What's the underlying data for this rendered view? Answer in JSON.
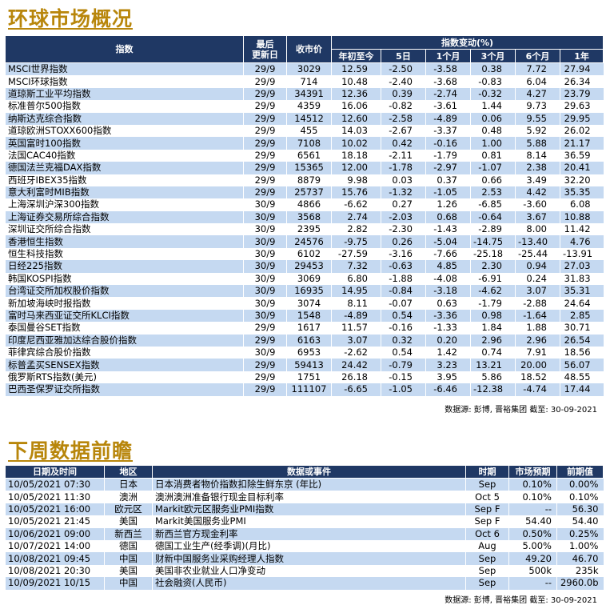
{
  "market": {
    "title": "环球市场概况",
    "headers": {
      "index": "指数",
      "last_update_l1": "最后",
      "last_update_l2": "更新日",
      "close": "收市价",
      "change_group": "指数变动(%)",
      "ytd": "年初至今",
      "d5": "5日",
      "m1": "1个月",
      "m3": "3个月",
      "m6": "6个月",
      "y1": "1年"
    },
    "rows": [
      {
        "name": "MSCI世界指数",
        "date": "29/9",
        "close": "3029",
        "ytd": "12.59",
        "d5": "-2.50",
        "m1": "-3.58",
        "m3": "0.38",
        "m6": "7.72",
        "y1": "27.94"
      },
      {
        "name": "MSCI环球指数",
        "date": "29/9",
        "close": "714",
        "ytd": "10.48",
        "d5": "-2.40",
        "m1": "-3.68",
        "m3": "-0.83",
        "m6": "6.04",
        "y1": "26.34"
      },
      {
        "name": "道琼斯工业平均指数",
        "date": "29/9",
        "close": "34391",
        "ytd": "12.36",
        "d5": "0.39",
        "m1": "-2.74",
        "m3": "-0.32",
        "m6": "4.27",
        "y1": "23.79"
      },
      {
        "name": "标准普尔500指数",
        "date": "29/9",
        "close": "4359",
        "ytd": "16.06",
        "d5": "-0.82",
        "m1": "-3.61",
        "m3": "1.44",
        "m6": "9.73",
        "y1": "29.63"
      },
      {
        "name": "纳斯达克综合指数",
        "date": "29/9",
        "close": "14512",
        "ytd": "12.60",
        "d5": "-2.58",
        "m1": "-4.89",
        "m3": "0.06",
        "m6": "9.55",
        "y1": "29.95"
      },
      {
        "name": "道琼欧洲STOXX600指数",
        "date": "29/9",
        "close": "455",
        "ytd": "14.03",
        "d5": "-2.67",
        "m1": "-3.37",
        "m3": "0.48",
        "m6": "5.92",
        "y1": "26.02"
      },
      {
        "name": "英国富时100指数",
        "date": "29/9",
        "close": "7108",
        "ytd": "10.02",
        "d5": "0.42",
        "m1": "-0.16",
        "m3": "1.00",
        "m6": "5.88",
        "y1": "21.17"
      },
      {
        "name": "法国CAC40指数",
        "date": "29/9",
        "close": "6561",
        "ytd": "18.18",
        "d5": "-2.11",
        "m1": "-1.79",
        "m3": "0.81",
        "m6": "8.14",
        "y1": "36.59"
      },
      {
        "name": "德国法兰克福DAX指数",
        "date": "29/9",
        "close": "15365",
        "ytd": "12.00",
        "d5": "-1.78",
        "m1": "-2.97",
        "m3": "-1.07",
        "m6": "2.38",
        "y1": "20.41"
      },
      {
        "name": "西班牙IBEX35指数",
        "date": "29/9",
        "close": "8879",
        "ytd": "9.98",
        "d5": "0.03",
        "m1": "0.37",
        "m3": "0.66",
        "m6": "3.49",
        "y1": "32.20"
      },
      {
        "name": "意大利富时MIB指数",
        "date": "29/9",
        "close": "25737",
        "ytd": "15.76",
        "d5": "-1.32",
        "m1": "-1.05",
        "m3": "2.53",
        "m6": "4.42",
        "y1": "35.35"
      },
      {
        "name": "上海深圳沪深300指数",
        "date": "30/9",
        "close": "4866",
        "ytd": "-6.62",
        "d5": "0.27",
        "m1": "1.26",
        "m3": "-6.85",
        "m6": "-3.60",
        "y1": "6.08"
      },
      {
        "name": "上海证券交易所综合指数",
        "date": "30/9",
        "close": "3568",
        "ytd": "2.74",
        "d5": "-2.03",
        "m1": "0.68",
        "m3": "-0.64",
        "m6": "3.67",
        "y1": "10.88"
      },
      {
        "name": "深圳证交所综合指数",
        "date": "30/9",
        "close": "2395",
        "ytd": "2.82",
        "d5": "-2.30",
        "m1": "-1.43",
        "m3": "-2.89",
        "m6": "8.00",
        "y1": "11.42"
      },
      {
        "name": "香港恒生指数",
        "date": "30/9",
        "close": "24576",
        "ytd": "-9.75",
        "d5": "0.26",
        "m1": "-5.04",
        "m3": "-14.75",
        "m6": "-13.40",
        "y1": "4.76"
      },
      {
        "name": "恒生科技指数",
        "date": "30/9",
        "close": "6102",
        "ytd": "-27.59",
        "d5": "-3.16",
        "m1": "-7.66",
        "m3": "-25.18",
        "m6": "-25.44",
        "y1": "-13.91"
      },
      {
        "name": "日经225指数",
        "date": "30/9",
        "close": "29453",
        "ytd": "7.32",
        "d5": "-0.63",
        "m1": "4.85",
        "m3": "2.30",
        "m6": "0.94",
        "y1": "27.03"
      },
      {
        "name": "韩国KOSPI指数",
        "date": "30/9",
        "close": "3069",
        "ytd": "6.80",
        "d5": "-1.88",
        "m1": "-4.08",
        "m3": "-6.91",
        "m6": "0.24",
        "y1": "31.83"
      },
      {
        "name": "台湾证交所加权股价指数",
        "date": "30/9",
        "close": "16935",
        "ytd": "14.95",
        "d5": "-0.84",
        "m1": "-3.18",
        "m3": "-4.62",
        "m6": "3.07",
        "y1": "35.31"
      },
      {
        "name": "新加坡海峡时报指数",
        "date": "30/9",
        "close": "3074",
        "ytd": "8.11",
        "d5": "-0.07",
        "m1": "0.63",
        "m3": "-1.79",
        "m6": "-2.88",
        "y1": "24.64"
      },
      {
        "name": "富时马来西亚证交所KLCI指数",
        "date": "30/9",
        "close": "1548",
        "ytd": "-4.89",
        "d5": "0.54",
        "m1": "-3.36",
        "m3": "0.98",
        "m6": "-1.64",
        "y1": "2.85"
      },
      {
        "name": "泰国曼谷SET指数",
        "date": "29/9",
        "close": "1617",
        "ytd": "11.57",
        "d5": "-0.16",
        "m1": "-1.33",
        "m3": "1.84",
        "m6": "1.88",
        "y1": "30.71"
      },
      {
        "name": "印度尼西亚雅加达综合股价指数",
        "date": "29/9",
        "close": "6163",
        "ytd": "3.07",
        "d5": "0.32",
        "m1": "0.20",
        "m3": "2.96",
        "m6": "2.96",
        "y1": "26.54"
      },
      {
        "name": "菲律宾综合股价指数",
        "date": "30/9",
        "close": "6953",
        "ytd": "-2.62",
        "d5": "0.54",
        "m1": "1.42",
        "m3": "0.74",
        "m6": "7.91",
        "y1": "18.56"
      },
      {
        "name": "标普孟买SENSEX指数",
        "date": "29/9",
        "close": "59413",
        "ytd": "24.42",
        "d5": "-0.79",
        "m1": "3.23",
        "m3": "13.21",
        "m6": "20.00",
        "y1": "56.07"
      },
      {
        "name": "俄罗斯RTS指数(美元)",
        "date": "29/9",
        "close": "1751",
        "ytd": "26.18",
        "d5": "-0.15",
        "m1": "3.95",
        "m3": "5.86",
        "m6": "18.52",
        "y1": "48.55"
      },
      {
        "name": "巴西圣保罗证交所指数",
        "date": "29/9",
        "close": "111107",
        "ytd": "-6.65",
        "d5": "-1.05",
        "m1": "-6.46",
        "m3": "-12.38",
        "m6": "-4.74",
        "y1": "17.44"
      }
    ],
    "source": "数据源: 彭博, 晋裕集团 截至: 30-09-2021"
  },
  "calendar": {
    "title": "下周数据前瞻",
    "headers": {
      "datetime": "日期及时间",
      "region": "地区",
      "event": "数据或事件",
      "period": "时期",
      "forecast": "市场预期",
      "previous": "前期值"
    },
    "rows": [
      {
        "datetime": "10/05/2021 07:30",
        "region": "日本",
        "event": "日本消费者物价指数扣除生鲜东京 (年比)",
        "period": "Sep",
        "forecast": "0.10%",
        "previous": "0.00%"
      },
      {
        "datetime": "10/05/2021 11:30",
        "region": "澳洲",
        "event": "澳洲澳洲准备银行现金目标利率",
        "period": "Oct 5",
        "forecast": "0.10%",
        "previous": "0.10%"
      },
      {
        "datetime": "10/05/2021 16:00",
        "region": "欧元区",
        "event": "Markit欧元区服务业PMI指数",
        "period": "Sep F",
        "forecast": "--",
        "previous": "56.30"
      },
      {
        "datetime": "10/05/2021 21:45",
        "region": "美国",
        "event": "Markit美国服务业PMI",
        "period": "Sep F",
        "forecast": "54.40",
        "previous": "54.40"
      },
      {
        "datetime": "10/06/2021 09:00",
        "region": "新西兰",
        "event": "新西兰官方现金利率",
        "period": "Oct 6",
        "forecast": "0.50%",
        "previous": "0.25%"
      },
      {
        "datetime": "10/07/2021 14:00",
        "region": "德国",
        "event": "德国工业生产(经季调)(月比)",
        "period": "Aug",
        "forecast": "5.00%",
        "previous": "1.00%"
      },
      {
        "datetime": "10/08/2021 09:45",
        "region": "中国",
        "event": "财新中国服务业采购经理人指数",
        "period": "Sep",
        "forecast": "49.20",
        "previous": "46.70"
      },
      {
        "datetime": "10/08/2021 20:30",
        "region": "美国",
        "event": "美国非农业就业人口净变动",
        "period": "Sep",
        "forecast": "500k",
        "previous": "235k"
      },
      {
        "datetime": "10/09/2021 10/15",
        "region": "中国",
        "event": "社会融资(人民币)",
        "period": "Sep",
        "forecast": "--",
        "previous": "2960.0b"
      }
    ],
    "source": "数据源: 彭博, 晋裕集团 截至: 30-09-2021"
  },
  "colors": {
    "header_bg": "#1f3864",
    "row_alt": "#c5d9f1",
    "title": "#b8860b"
  }
}
